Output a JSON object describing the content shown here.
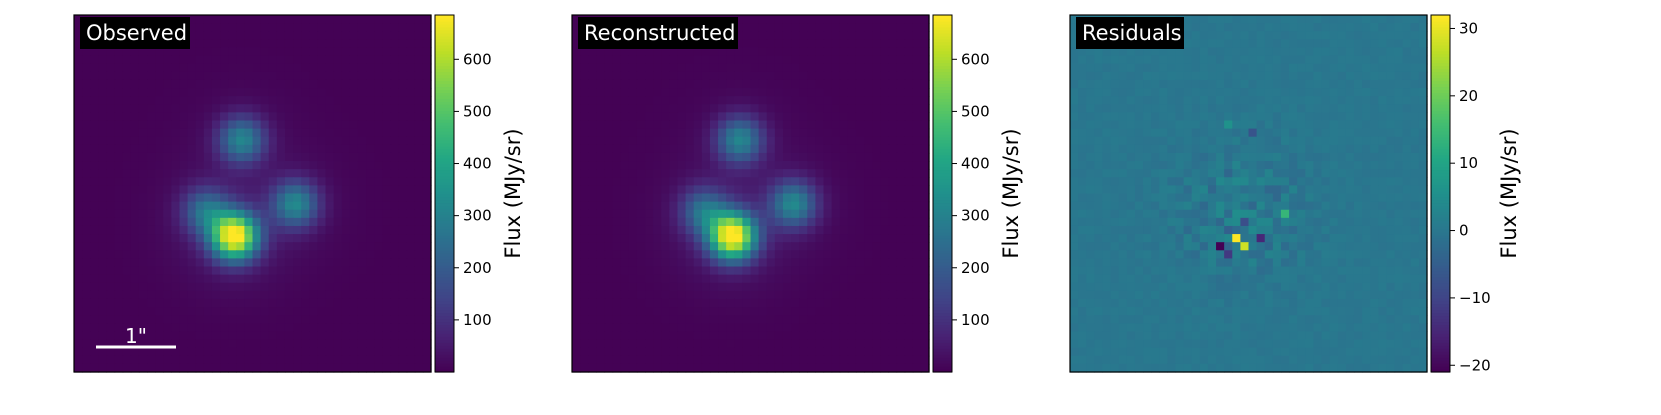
{
  "chart_data": [
    {
      "type": "heatmap",
      "title": "Observed",
      "colormap": "viridis",
      "colorbar": {
        "label": "Flux (MJy/sr)",
        "range": [
          0,
          685
        ],
        "ticks": [
          100,
          200,
          300,
          400,
          500,
          600
        ]
      },
      "grid": false,
      "scale_bar": {
        "label": "1\""
      },
      "sources": [
        {
          "x": 0.45,
          "y": 0.62,
          "peak": 685
        },
        {
          "x": 0.47,
          "y": 0.35,
          "peak": 290
        },
        {
          "x": 0.62,
          "y": 0.53,
          "peak": 295
        },
        {
          "x": 0.37,
          "y": 0.55,
          "peak": 230
        }
      ]
    },
    {
      "type": "heatmap",
      "title": "Reconstructed",
      "colormap": "viridis",
      "colorbar": {
        "label": "Flux (MJy/sr)",
        "range": [
          0,
          685
        ],
        "ticks": [
          100,
          200,
          300,
          400,
          500,
          600
        ]
      },
      "grid": false,
      "sources": [
        {
          "x": 0.45,
          "y": 0.62,
          "peak": 685
        },
        {
          "x": 0.47,
          "y": 0.35,
          "peak": 290
        },
        {
          "x": 0.62,
          "y": 0.53,
          "peak": 295
        },
        {
          "x": 0.37,
          "y": 0.55,
          "peak": 230
        }
      ]
    },
    {
      "type": "heatmap",
      "title": "Residuals",
      "colormap": "viridis",
      "colorbar": {
        "label": "Flux (MJy/sr)",
        "range": [
          -21,
          32
        ],
        "ticks": [
          -20,
          -10,
          0,
          10,
          20,
          30
        ]
      },
      "grid": false,
      "background_value": 0,
      "features": [
        {
          "x": 0.46,
          "y": 0.62,
          "value": 32
        },
        {
          "x": 0.41,
          "y": 0.65,
          "value": -21
        },
        {
          "x": 0.49,
          "y": 0.65,
          "value": 28
        },
        {
          "x": 0.53,
          "y": 0.62,
          "value": -15
        },
        {
          "x": 0.44,
          "y": 0.66,
          "value": -12
        },
        {
          "x": 0.61,
          "y": 0.56,
          "value": 14
        },
        {
          "x": 0.48,
          "y": 0.59,
          "value": -8
        },
        {
          "x": 0.5,
          "y": 0.32,
          "value": -7
        },
        {
          "x": 0.45,
          "y": 0.3,
          "value": 6
        }
      ]
    }
  ]
}
